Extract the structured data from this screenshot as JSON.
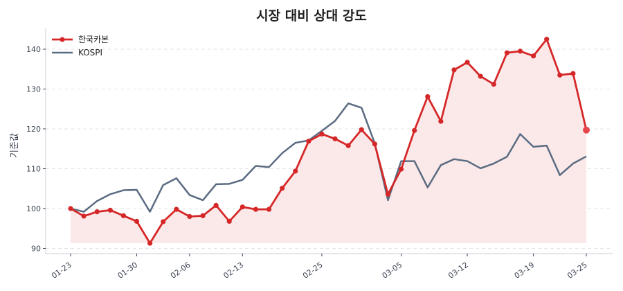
{
  "chart_data": {
    "type": "line",
    "title": "시장 대비 상대 강도",
    "xlabel": "",
    "ylabel": "기준값",
    "ylim": [
      89,
      145
    ],
    "yticks": [
      90,
      100,
      110,
      120,
      130,
      140
    ],
    "xtick_labels": [
      "01-23",
      "01-30",
      "02-06",
      "02-13",
      "02-25",
      "03-05",
      "03-12",
      "03-19",
      "03-25"
    ],
    "xtick_indices": [
      0,
      5,
      9,
      13,
      19,
      25,
      30,
      35,
      39
    ],
    "grid": "y-dashed",
    "legend_position": "upper-left",
    "baseline_fill_min": 91.3,
    "series": [
      {
        "name": "한국카본",
        "color": "#d62728",
        "marker": "circle",
        "fill": "#fbe9e9",
        "values": [
          100.0,
          98.1,
          99.2,
          99.6,
          98.2,
          96.8,
          91.3,
          96.7,
          99.8,
          98.0,
          98.2,
          100.8,
          96.8,
          100.4,
          99.8,
          99.8,
          105.1,
          109.4,
          116.9,
          118.7,
          117.5,
          115.8,
          119.8,
          116.2,
          103.6,
          109.9,
          119.6,
          128.1,
          121.9,
          134.8,
          136.7,
          133.2,
          131.2,
          139.1,
          139.5,
          138.3,
          142.5,
          133.5,
          133.9,
          119.7
        ]
      },
      {
        "name": "KOSPI",
        "color": "#5a6b82",
        "marker": "none",
        "values": [
          100.0,
          99.2,
          101.9,
          103.6,
          104.6,
          104.7,
          99.2,
          105.9,
          107.6,
          103.4,
          102.1,
          106.1,
          106.2,
          107.2,
          110.7,
          110.4,
          113.9,
          116.5,
          117.1,
          119.5,
          122.0,
          126.4,
          125.3,
          116.4,
          102.1,
          111.9,
          111.9,
          105.3,
          110.9,
          112.4,
          111.9,
          110.1,
          111.3,
          113.0,
          118.7,
          115.5,
          115.8,
          108.4,
          111.3,
          113.1
        ]
      }
    ]
  }
}
